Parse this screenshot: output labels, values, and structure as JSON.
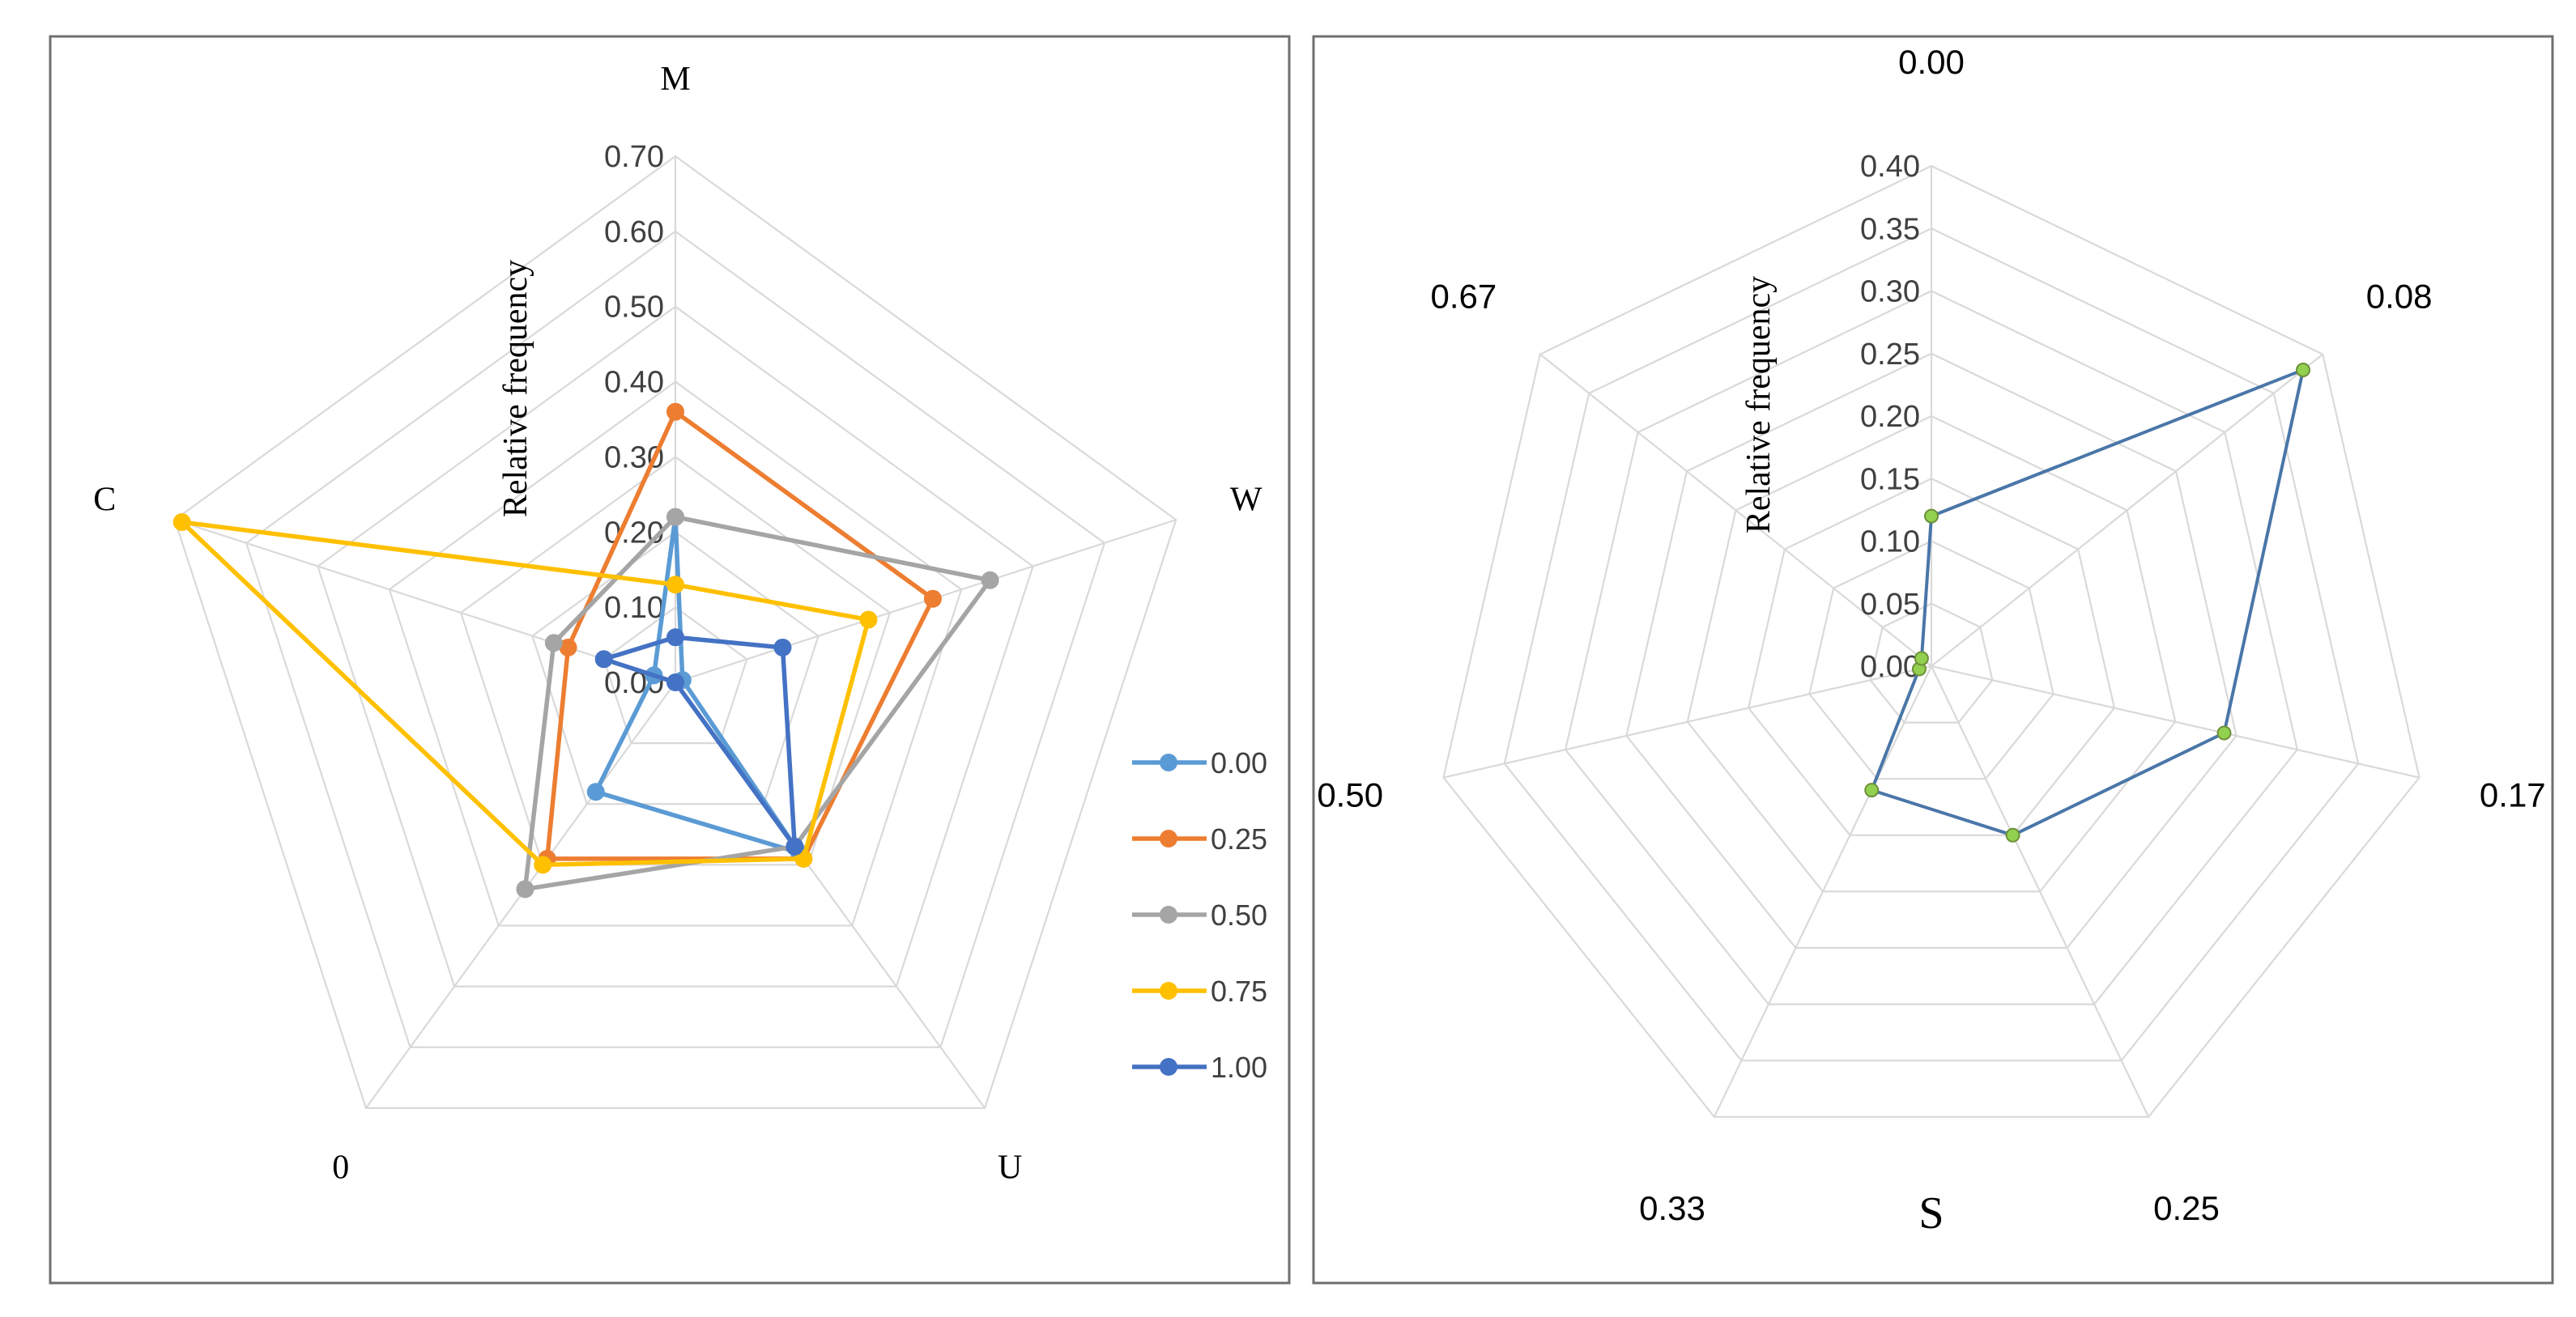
{
  "chart_data": [
    {
      "type": "radar",
      "title": "",
      "axis_title": "Relative frequency",
      "categories": [
        "M",
        "W",
        "U",
        "0",
        "C"
      ],
      "ticks": [
        "0.00",
        "0.10",
        "0.20",
        "0.30",
        "0.40",
        "0.50",
        "0.60",
        "0.70"
      ],
      "rmax": 0.7,
      "legend_position": "right",
      "series": [
        {
          "name": "0.00",
          "color": "#5b9bd5",
          "values": [
            0.22,
            0.01,
            0.28,
            0.18,
            0.03
          ]
        },
        {
          "name": "0.25",
          "color": "#ed7d31",
          "values": [
            0.36,
            0.36,
            0.29,
            0.29,
            0.15
          ]
        },
        {
          "name": "0.50",
          "color": "#a5a5a5",
          "values": [
            0.22,
            0.44,
            0.27,
            0.34,
            0.17
          ]
        },
        {
          "name": "0.75",
          "color": "#ffc000",
          "values": [
            0.13,
            0.27,
            0.29,
            0.3,
            0.69
          ]
        },
        {
          "name": "1.00",
          "color": "#4472c4",
          "values": [
            0.06,
            0.15,
            0.27,
            0.0,
            0.1
          ]
        }
      ]
    },
    {
      "type": "radar",
      "title": "",
      "axis_title": "Relative frequency",
      "xlabel": "S",
      "categories": [
        "0.00",
        "0.08",
        "0.17",
        "0.25",
        "0.33",
        "0.50",
        "0.67"
      ],
      "ticks": [
        "0.00",
        "0.05",
        "0.10",
        "0.15",
        "0.20",
        "0.25",
        "0.30",
        "0.35",
        "0.40"
      ],
      "rmax": 0.4,
      "series": [
        {
          "name": "S",
          "line_color": "#4a76a8",
          "marker_color": "#92d050",
          "values": [
            0.12,
            0.38,
            0.24,
            0.15,
            0.11,
            0.01,
            0.01
          ]
        }
      ]
    }
  ]
}
